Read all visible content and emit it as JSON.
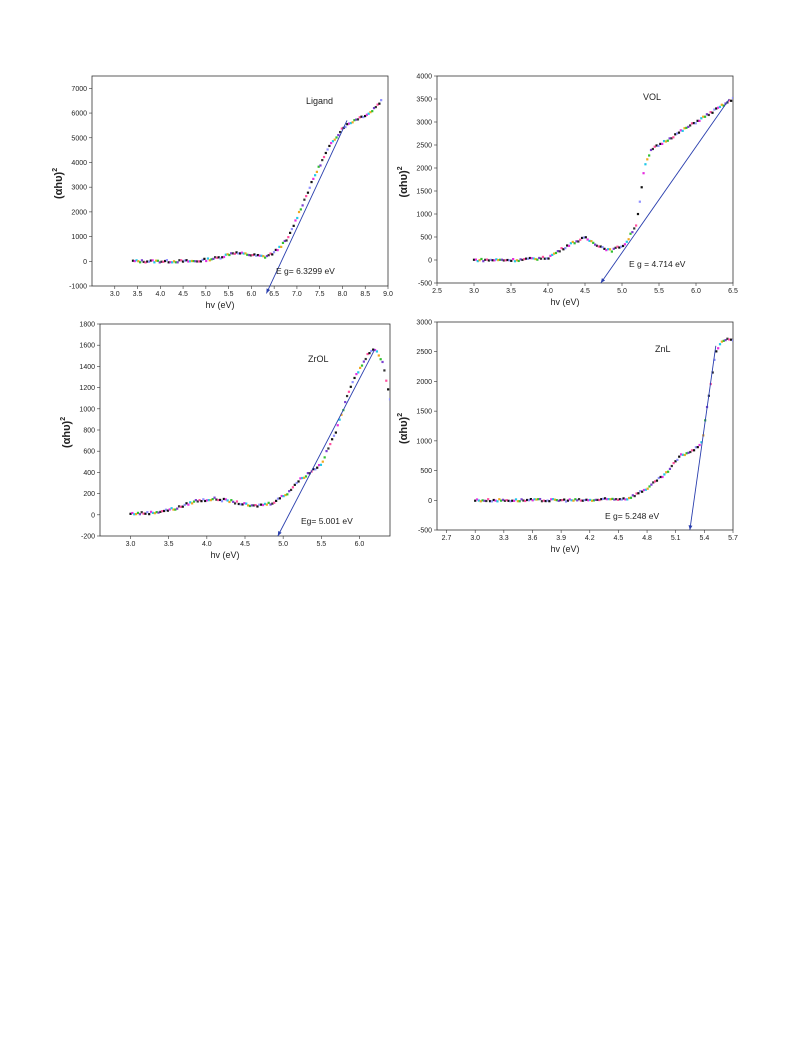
{
  "chart_data": [
    {
      "type": "scatter",
      "name_label": "Ligand",
      "annotation": "E g= 6.3299 eV",
      "xlabel": "hv (eV)",
      "ylabel_base": "(αhυ)",
      "ylabel_sup": "2",
      "xlim": [
        2.5,
        9.0
      ],
      "ylim": [
        -1000,
        7500
      ],
      "xticks": [
        3.0,
        3.5,
        4.0,
        4.5,
        5.0,
        5.5,
        6.0,
        6.5,
        7.0,
        7.5,
        8.0,
        8.5,
        9.0
      ],
      "xtick_labels": [
        "3.0",
        "3.5",
        "4.0",
        "4.5",
        "5.0",
        "5.5",
        "6.0",
        "6.5",
        "7.0",
        "7.5",
        "8.0",
        "8.5",
        "9.0"
      ],
      "yticks": [
        -1000,
        0,
        1000,
        2000,
        3000,
        4000,
        5000,
        6000,
        7000
      ],
      "ytick_labels": [
        "-1000",
        "0",
        "1000",
        "2000",
        "3000",
        "4000",
        "5000",
        "6000",
        "7000"
      ],
      "curve": [
        [
          3.4,
          0
        ],
        [
          4.0,
          0
        ],
        [
          4.8,
          0
        ],
        [
          5.3,
          150
        ],
        [
          5.6,
          350
        ],
        [
          5.9,
          280
        ],
        [
          6.3,
          180
        ],
        [
          6.5,
          350
        ],
        [
          6.8,
          900
        ],
        [
          7.1,
          2200
        ],
        [
          7.4,
          3500
        ],
        [
          7.7,
          4600
        ],
        [
          8.0,
          5400
        ],
        [
          8.3,
          5750
        ],
        [
          8.6,
          6000
        ],
        [
          8.85,
          6500
        ]
      ],
      "fit_line": [
        [
          6.33,
          -1300
        ],
        [
          8.1,
          5700
        ]
      ],
      "colors": {
        "fit": "#2a3fae"
      }
    },
    {
      "type": "scatter",
      "name_label": "VOL",
      "annotation": "E g = 4.714 eV",
      "xlabel": "hv (eV)",
      "ylabel_base": "(αhυ)",
      "ylabel_sup": "2",
      "xlim": [
        2.5,
        6.5
      ],
      "ylim": [
        -500,
        4000
      ],
      "xticks": [
        2.5,
        3.0,
        3.5,
        4.0,
        4.5,
        5.0,
        5.5,
        6.0,
        6.5
      ],
      "xtick_labels": [
        "2.5",
        "3.0",
        "3.5",
        "4.0",
        "4.5",
        "5.0",
        "5.5",
        "6.0",
        "6.5"
      ],
      "yticks": [
        -500,
        0,
        500,
        1000,
        1500,
        2000,
        2500,
        3000,
        3500,
        4000
      ],
      "ytick_labels": [
        "-500",
        "0",
        "500",
        "1000",
        "1500",
        "2000",
        "2500",
        "3000",
        "3500",
        "4000"
      ],
      "curve": [
        [
          3.0,
          0
        ],
        [
          3.6,
          0
        ],
        [
          4.0,
          50
        ],
        [
          4.3,
          350
        ],
        [
          4.5,
          480
        ],
        [
          4.7,
          300
        ],
        [
          4.85,
          200
        ],
        [
          5.05,
          350
        ],
        [
          5.2,
          800
        ],
        [
          5.3,
          2000
        ],
        [
          5.4,
          2400
        ],
        [
          5.6,
          2600
        ],
        [
          5.85,
          2850
        ],
        [
          6.1,
          3100
        ],
        [
          6.5,
          3500
        ]
      ],
      "fit_line": [
        [
          4.714,
          -500
        ],
        [
          6.45,
          3500
        ]
      ],
      "colors": {
        "fit": "#2a3fae"
      }
    },
    {
      "type": "scatter",
      "name_label": "ZrOL",
      "annotation": "Eg= 5.001 eV",
      "xlabel": "hv (eV)",
      "ylabel_base": "(αhυ)",
      "ylabel_sup": "2",
      "xlim": [
        2.6,
        6.4
      ],
      "ylim": [
        -200,
        1800
      ],
      "xticks": [
        3.0,
        3.5,
        4.0,
        4.5,
        5.0,
        5.5,
        6.0
      ],
      "xtick_labels": [
        "3.0",
        "3.5",
        "4.0",
        "4.5",
        "5.0",
        "5.5",
        "6.0"
      ],
      "yticks": [
        -200,
        0,
        200,
        400,
        600,
        800,
        1000,
        1200,
        1400,
        1600,
        1800
      ],
      "ytick_labels": [
        "-200",
        "0",
        "200",
        "400",
        "600",
        "800",
        "1000",
        "1200",
        "1400",
        "1600",
        "1800"
      ],
      "curve": [
        [
          3.0,
          10
        ],
        [
          3.3,
          20
        ],
        [
          3.6,
          60
        ],
        [
          3.85,
          130
        ],
        [
          4.1,
          150
        ],
        [
          4.3,
          130
        ],
        [
          4.6,
          80
        ],
        [
          4.85,
          110
        ],
        [
          5.05,
          200
        ],
        [
          5.2,
          320
        ],
        [
          5.5,
          480
        ],
        [
          5.7,
          800
        ],
        [
          5.9,
          1250
        ],
        [
          6.1,
          1500
        ],
        [
          6.2,
          1570
        ],
        [
          6.3,
          1450
        ],
        [
          6.4,
          1100
        ]
      ],
      "fit_line": [
        [
          4.93,
          -200
        ],
        [
          6.2,
          1560
        ]
      ],
      "colors": {
        "fit": "#2a3fae"
      }
    },
    {
      "type": "scatter",
      "name_label": "ZnL",
      "annotation": "E g= 5.248 eV",
      "xlabel": "hv (eV)",
      "ylabel_base": "(αhυ)",
      "ylabel_sup": "2",
      "xlim": [
        2.6,
        5.7
      ],
      "ylim": [
        -500,
        3000
      ],
      "xticks": [
        2.7,
        3.0,
        3.3,
        3.6,
        3.9,
        4.2,
        4.5,
        4.8,
        5.1,
        5.4,
        5.7
      ],
      "xtick_labels": [
        "2.7",
        "3.0",
        "3.3",
        "3.6",
        "3.9",
        "4.2",
        "4.5",
        "4.8",
        "5.1",
        "5.4",
        "5.7"
      ],
      "yticks": [
        -500,
        0,
        500,
        1000,
        1500,
        2000,
        2500,
        3000
      ],
      "ytick_labels": [
        "-500",
        "0",
        "500",
        "1000",
        "1500",
        "2000",
        "2500",
        "3000"
      ],
      "curve": [
        [
          3.0,
          0
        ],
        [
          3.6,
          0
        ],
        [
          4.2,
          0
        ],
        [
          4.6,
          30
        ],
        [
          4.8,
          200
        ],
        [
          5.0,
          450
        ],
        [
          5.15,
          750
        ],
        [
          5.3,
          850
        ],
        [
          5.38,
          1000
        ],
        [
          5.45,
          1800
        ],
        [
          5.52,
          2500
        ],
        [
          5.6,
          2700
        ],
        [
          5.7,
          2700
        ]
      ],
      "fit_line": [
        [
          5.248,
          -500
        ],
        [
          5.52,
          2600
        ]
      ],
      "colors": {
        "fit": "#2a3fae"
      }
    }
  ]
}
